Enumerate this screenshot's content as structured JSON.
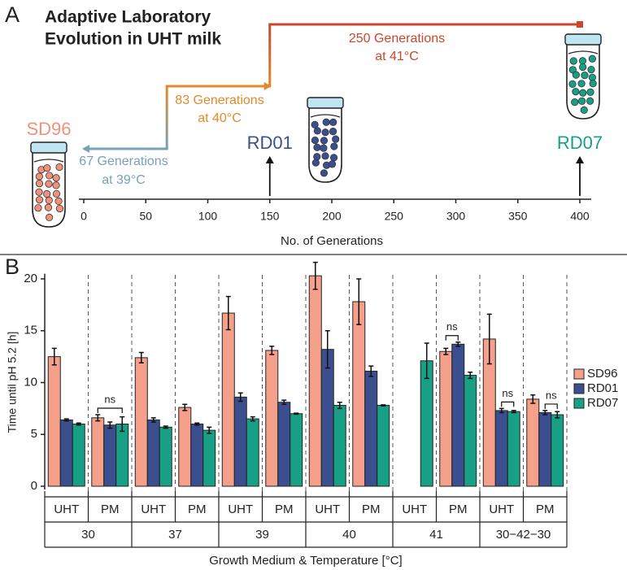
{
  "chart_data": [
    {
      "type": "timeline",
      "panel": "A",
      "title": [
        "Adaptive Laboratory",
        "Evolution in UHT milk"
      ],
      "xlabel": "No. of Generations",
      "xlim": [
        0,
        400
      ],
      "xticks": [
        0,
        50,
        100,
        150,
        200,
        250,
        300,
        350,
        400
      ],
      "stages": [
        {
          "label": "67 Generations",
          "sublabel": "at 39°C",
          "start": 0,
          "end": 67,
          "color": "#76a2b8"
        },
        {
          "label": "83 Generations",
          "sublabel": "at 40°C",
          "start": 67,
          "end": 150,
          "color": "#e28a2b"
        },
        {
          "label": "250 Generations",
          "sublabel": "at 41°C",
          "start": 150,
          "end": 400,
          "color": "#c9472c"
        }
      ],
      "strains": [
        {
          "name": "SD96",
          "x": 0,
          "color": "#f0927a"
        },
        {
          "name": "RD01",
          "x": 150,
          "color": "#3b4f8e"
        },
        {
          "name": "RD07",
          "x": 400,
          "color": "#17a085"
        }
      ]
    },
    {
      "type": "bar",
      "panel": "B",
      "ylabel": "Time until pH 5.2 [h]",
      "xlabel": "Growth Medium & Temperature [°C]",
      "categories": [
        "UHT",
        "PM",
        "UHT",
        "PM",
        "UHT",
        "PM",
        "UHT",
        "PM",
        "UHT",
        "PM",
        "UHT",
        "PM"
      ],
      "category_groups": [
        "30",
        "37",
        "39",
        "40",
        "41",
        "30−42−30"
      ],
      "ylim": [
        0,
        20.5
      ],
      "yticks": [
        0,
        5,
        10,
        15,
        20
      ],
      "legend": "right",
      "series": [
        {
          "name": "SD96",
          "color": "#f4a08a",
          "values": [
            12.5,
            6.6,
            12.4,
            7.6,
            16.7,
            13.1,
            20.3,
            17.8,
            null,
            13.0,
            14.2,
            8.4
          ],
          "errors": [
            0.8,
            0.3,
            0.5,
            0.3,
            1.6,
            0.4,
            1.3,
            2.2,
            null,
            0.3,
            2.4,
            0.4
          ]
        },
        {
          "name": "RD01",
          "color": "#3b4f8e",
          "values": [
            6.4,
            5.9,
            6.4,
            6.0,
            8.6,
            8.1,
            13.2,
            11.1,
            null,
            13.7,
            7.3,
            7.1
          ],
          "errors": [
            0.1,
            0.3,
            0.2,
            0.1,
            0.4,
            0.2,
            1.8,
            0.5,
            null,
            0.2,
            0.2,
            0.2
          ]
        },
        {
          "name": "RD07",
          "color": "#17a085",
          "values": [
            6.0,
            6.0,
            5.7,
            5.4,
            6.5,
            7.0,
            7.8,
            7.8,
            12.1,
            10.7,
            7.2,
            6.9
          ],
          "errors": [
            0.1,
            0.7,
            0.1,
            0.3,
            0.2,
            0.05,
            0.3,
            0.05,
            1.7,
            0.3,
            0.1,
            0.3
          ]
        }
      ],
      "annotations": [
        {
          "label": "ns",
          "group": "30",
          "category": "PM",
          "series": [
            "SD96",
            "RD07"
          ]
        },
        {
          "label": "ns",
          "group": "41",
          "category": "PM",
          "series": [
            "SD96",
            "RD01"
          ]
        },
        {
          "label": "ns",
          "group": "30−42−30",
          "category": "UHT",
          "series": [
            "RD01",
            "RD07"
          ]
        },
        {
          "label": "ns",
          "group": "30−42−30",
          "category": "PM",
          "series": [
            "RD01",
            "RD07"
          ]
        }
      ]
    }
  ]
}
